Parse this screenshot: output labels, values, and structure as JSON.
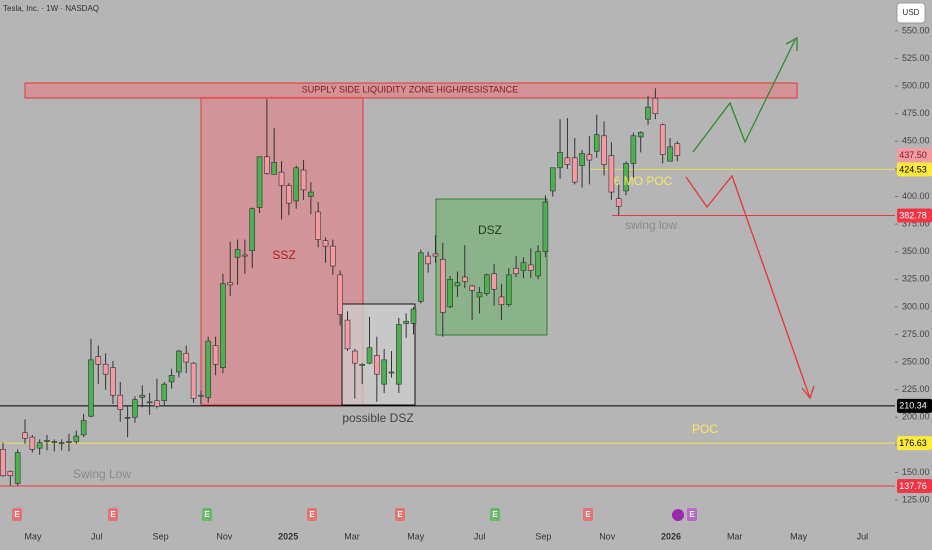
{
  "chart_data": {
    "type": "candlestick",
    "title": "Tesla, Inc. · 1W · NASDAQ",
    "currency": "USD",
    "up_color": "#4caf50",
    "down_color": "#f49aa2",
    "ylim": [
      116,
      578
    ],
    "yticks": [
      {
        "value": 125,
        "label": "125.00"
      },
      {
        "value": 150,
        "label": "150.00"
      },
      {
        "value": 175,
        "label": "175.00"
      },
      {
        "value": 200,
        "label": "200.00"
      },
      {
        "value": 225,
        "label": "225.00"
      },
      {
        "value": 250,
        "label": "250.00"
      },
      {
        "value": 275,
        "label": "275.00"
      },
      {
        "value": 300,
        "label": "300.00"
      },
      {
        "value": 325,
        "label": "325.00"
      },
      {
        "value": 350,
        "label": "350.00"
      },
      {
        "value": 375,
        "label": "375.00"
      },
      {
        "value": 400,
        "label": "400.00"
      },
      {
        "value": 425,
        "label": "425.00"
      },
      {
        "value": 450,
        "label": "450.00"
      },
      {
        "value": 475,
        "label": "475.00"
      },
      {
        "value": 500,
        "label": "500.00"
      },
      {
        "value": 525,
        "label": "525.00"
      },
      {
        "value": 550,
        "label": "550.00"
      }
    ],
    "x_labels": [
      "May",
      "Jul",
      "Sep",
      "Nov",
      "2025",
      "Mar",
      "May",
      "Jul",
      "Sep",
      "Nov",
      "2026",
      "Mar",
      "May",
      "Jul"
    ],
    "candles": [
      [
        171,
        177,
        146,
        147
      ],
      [
        151,
        152,
        138,
        147
      ],
      [
        140,
        171,
        138,
        168
      ],
      [
        186,
        198,
        176,
        181
      ],
      [
        182,
        184,
        168,
        171
      ],
      [
        172,
        180,
        166,
        177
      ],
      [
        178,
        184,
        170,
        179
      ],
      [
        178,
        180,
        169,
        178
      ],
      [
        177,
        180,
        170,
        177
      ],
      [
        177,
        185,
        169,
        178
      ],
      [
        178,
        188,
        176,
        183
      ],
      [
        184,
        203,
        182,
        197
      ],
      [
        201,
        271,
        200,
        252
      ],
      [
        255,
        265,
        230,
        248
      ],
      [
        248,
        258,
        225,
        239
      ],
      [
        245,
        251,
        212,
        220
      ],
      [
        220,
        232,
        196,
        207
      ],
      [
        200,
        210,
        182,
        200
      ],
      [
        200,
        219,
        195,
        216
      ],
      [
        218,
        229,
        209,
        220
      ],
      [
        214,
        222,
        202,
        214
      ],
      [
        215,
        235,
        208,
        210
      ],
      [
        215,
        232,
        211,
        230
      ],
      [
        232,
        244,
        226,
        238
      ],
      [
        241,
        261,
        236,
        260
      ],
      [
        258,
        265,
        240,
        250
      ],
      [
        249,
        250,
        213,
        217
      ],
      [
        220,
        224,
        212,
        220
      ],
      [
        218,
        273,
        213,
        269
      ],
      [
        265,
        273,
        238,
        248
      ],
      [
        245,
        330,
        240,
        321
      ],
      [
        322,
        359,
        310,
        320
      ],
      [
        345,
        361,
        320,
        352
      ],
      [
        347,
        361,
        330,
        346
      ],
      [
        351,
        390,
        335,
        389
      ],
      [
        390,
        436,
        385,
        436
      ],
      [
        436,
        488,
        420,
        421
      ],
      [
        420,
        462,
        420,
        431
      ],
      [
        422,
        432,
        379,
        410
      ],
      [
        410,
        412,
        383,
        394
      ],
      [
        396,
        428,
        389,
        426
      ],
      [
        424,
        433,
        397,
        406
      ],
      [
        400,
        413,
        384,
        404
      ],
      [
        386,
        395,
        354,
        361
      ],
      [
        360,
        363,
        340,
        355
      ],
      [
        355,
        361,
        329,
        337
      ],
      [
        329,
        333,
        283,
        293
      ],
      [
        288,
        296,
        260,
        262
      ],
      [
        260,
        262,
        217,
        249
      ],
      [
        247,
        249,
        230,
        248
      ],
      [
        249,
        291,
        248,
        263
      ],
      [
        256,
        273,
        214,
        239
      ],
      [
        230,
        262,
        222,
        252
      ],
      [
        241,
        260,
        236,
        241
      ],
      [
        230,
        290,
        222,
        284
      ],
      [
        285,
        294,
        272,
        287
      ],
      [
        285,
        300,
        275,
        298
      ],
      [
        305,
        352,
        303,
        349
      ],
      [
        346,
        350,
        331,
        339
      ],
      [
        348,
        365,
        340,
        346
      ],
      [
        343,
        358,
        273,
        295
      ],
      [
        300,
        328,
        299,
        325
      ],
      [
        319,
        332,
        309,
        322
      ],
      [
        327,
        356,
        317,
        323
      ],
      [
        319,
        320,
        288,
        315
      ],
      [
        309,
        318,
        294,
        313
      ],
      [
        312,
        330,
        310,
        329
      ],
      [
        330,
        339,
        301,
        316
      ],
      [
        309,
        321,
        288,
        302
      ],
      [
        302,
        335,
        300,
        329
      ],
      [
        335,
        346,
        327,
        330
      ],
      [
        333,
        345,
        326,
        340
      ],
      [
        338,
        353,
        326,
        333
      ],
      [
        328,
        356,
        325,
        350
      ],
      [
        350,
        401,
        345,
        395
      ],
      [
        405,
        426,
        400,
        426
      ],
      [
        426,
        470,
        416,
        440
      ],
      [
        435,
        471,
        425,
        429
      ],
      [
        435,
        453,
        411,
        413
      ],
      [
        428,
        442,
        408,
        439
      ],
      [
        438,
        455,
        411,
        433
      ],
      [
        441,
        474,
        435,
        456
      ],
      [
        455,
        468,
        419,
        429
      ],
      [
        437,
        449,
        397,
        404
      ],
      [
        398,
        414,
        383,
        391
      ],
      [
        405,
        432,
        401,
        430
      ],
      [
        430,
        458,
        417,
        455
      ],
      [
        454,
        459,
        440,
        458
      ],
      [
        470,
        491,
        465,
        481
      ],
      [
        489,
        498,
        470,
        475
      ],
      [
        465,
        466,
        430,
        438
      ],
      [
        432,
        453,
        432,
        445
      ],
      [
        448,
        450,
        432,
        437
      ]
    ],
    "levels": [
      {
        "value": 437.5,
        "label": "437.50",
        "color": "#f49aa2",
        "text_color": "#7a1a22"
      },
      {
        "value": 424.53,
        "color": "#ffeb3b",
        "text_color": "#000000"
      },
      {
        "value": 382.78,
        "color": "#f23645",
        "text_color": "#ffffff"
      },
      {
        "value": 210.34,
        "color": "#000000",
        "text_color": "#ffffff"
      },
      {
        "value": 176.63,
        "color": "#ffeb3b",
        "text_color": "#000000"
      },
      {
        "value": 137.76,
        "color": "#f23645",
        "text_color": "#ffffff"
      }
    ],
    "annotations": {
      "supply_zone": "SUPPLY SIDE LIQUIDITY ZONE HIGH/RESISTANCE",
      "ssz": "SSZ",
      "dsz": "DSZ",
      "possible_dsz": "possible DSZ",
      "six_mo_poc": "6 MO POC",
      "swing_low_recent": "swing low",
      "swing_low_old": "Swing Low",
      "poc": "POC"
    },
    "events": [
      "E",
      "E",
      "E",
      "E",
      "E",
      "E",
      "E",
      "E"
    ]
  }
}
